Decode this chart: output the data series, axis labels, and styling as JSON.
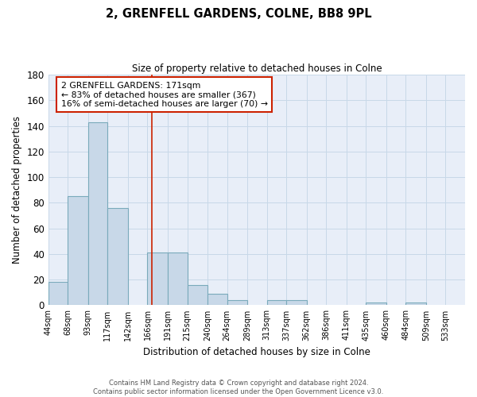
{
  "title": "2, GRENFELL GARDENS, COLNE, BB8 9PL",
  "subtitle": "Size of property relative to detached houses in Colne",
  "xlabel": "Distribution of detached houses by size in Colne",
  "ylabel": "Number of detached properties",
  "bar_left_edges": [
    44,
    68,
    93,
    117,
    142,
    166,
    191,
    215,
    240,
    264,
    289,
    313,
    337,
    362,
    386,
    411,
    435,
    460,
    484,
    509
  ],
  "bar_widths": [
    24,
    25,
    24,
    25,
    24,
    25,
    24,
    25,
    24,
    25,
    24,
    24,
    25,
    24,
    25,
    24,
    25,
    24,
    25,
    24
  ],
  "bar_heights": [
    18,
    85,
    143,
    76,
    0,
    41,
    41,
    16,
    9,
    4,
    0,
    4,
    4,
    0,
    0,
    0,
    2,
    0,
    2,
    0
  ],
  "bar_color": "#c8d8e8",
  "bar_edge_color": "#7aaabb",
  "tick_labels": [
    "44sqm",
    "68sqm",
    "93sqm",
    "117sqm",
    "142sqm",
    "166sqm",
    "191sqm",
    "215sqm",
    "240sqm",
    "264sqm",
    "289sqm",
    "313sqm",
    "337sqm",
    "362sqm",
    "386sqm",
    "411sqm",
    "435sqm",
    "460sqm",
    "484sqm",
    "509sqm",
    "533sqm"
  ],
  "ylim": [
    0,
    180
  ],
  "yticks": [
    0,
    20,
    40,
    60,
    80,
    100,
    120,
    140,
    160,
    180
  ],
  "property_size": 171,
  "vline_color": "#cc2200",
  "annotation_title": "2 GRENFELL GARDENS: 171sqm",
  "annotation_line1": "← 83% of detached houses are smaller (367)",
  "annotation_line2": "16% of semi-detached houses are larger (70) →",
  "annotation_box_facecolor": "#ffffff",
  "annotation_box_edgecolor": "#cc2200",
  "grid_color": "#c8d8e8",
  "background_color": "#e8eef8",
  "footer_line1": "Contains HM Land Registry data © Crown copyright and database right 2024.",
  "footer_line2": "Contains public sector information licensed under the Open Government Licence v3.0.",
  "fig_width": 6.0,
  "fig_height": 5.0,
  "fig_dpi": 100
}
